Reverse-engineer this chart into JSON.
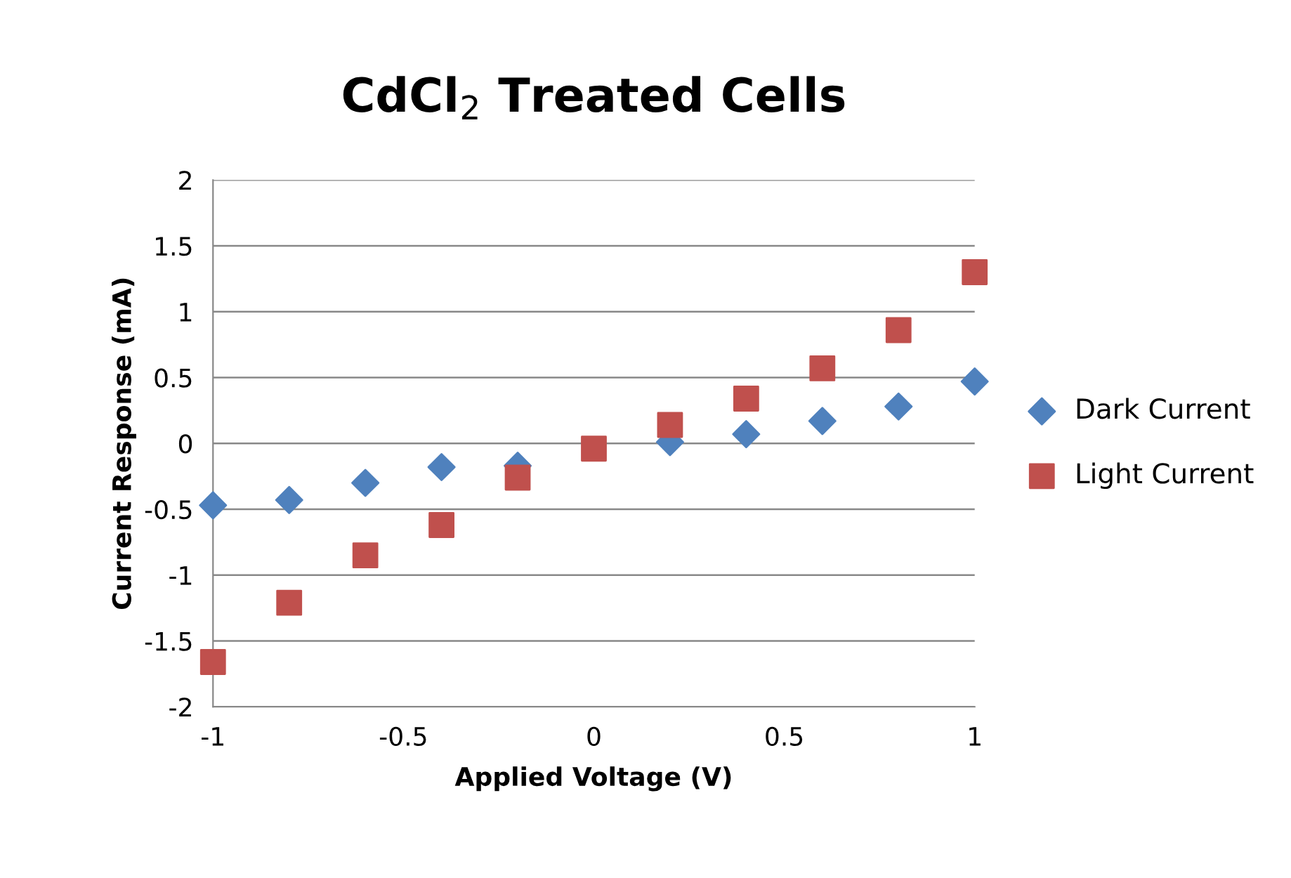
{
  "chart_data": {
    "type": "scatter",
    "title": "CdCl$_{2}$ Treated Cells",
    "xlabel": "Applied Voltage (V)",
    "ylabel": "Current Response (mA)",
    "x": [
      -1,
      -0.8,
      -0.6,
      -0.4,
      -0.2,
      0,
      0.2,
      0.4,
      0.6,
      0.8,
      1
    ],
    "series": [
      {
        "name": "Dark Current",
        "color": "#4f81bd",
        "marker": "diamond",
        "values": [
          -0.47,
          -0.43,
          -0.3,
          -0.18,
          -0.17,
          null,
          0.01,
          0.07,
          0.17,
          0.28,
          0.47
        ]
      },
      {
        "name": "Light Current",
        "color": "#c0504d",
        "marker": "square",
        "values": [
          -1.66,
          -1.21,
          -0.85,
          -0.62,
          -0.26,
          -0.04,
          0.14,
          0.34,
          0.57,
          0.86,
          1.3
        ]
      }
    ],
    "xlim": [
      -1,
      1
    ],
    "xticks": [
      -1,
      -0.5,
      0,
      0.5,
      1
    ],
    "ylim": [
      -2,
      2
    ],
    "yticks": [
      -2,
      -1.5,
      -1,
      -0.5,
      0,
      0.5,
      1,
      1.5,
      2
    ],
    "grid": "y",
    "legend": "right"
  }
}
